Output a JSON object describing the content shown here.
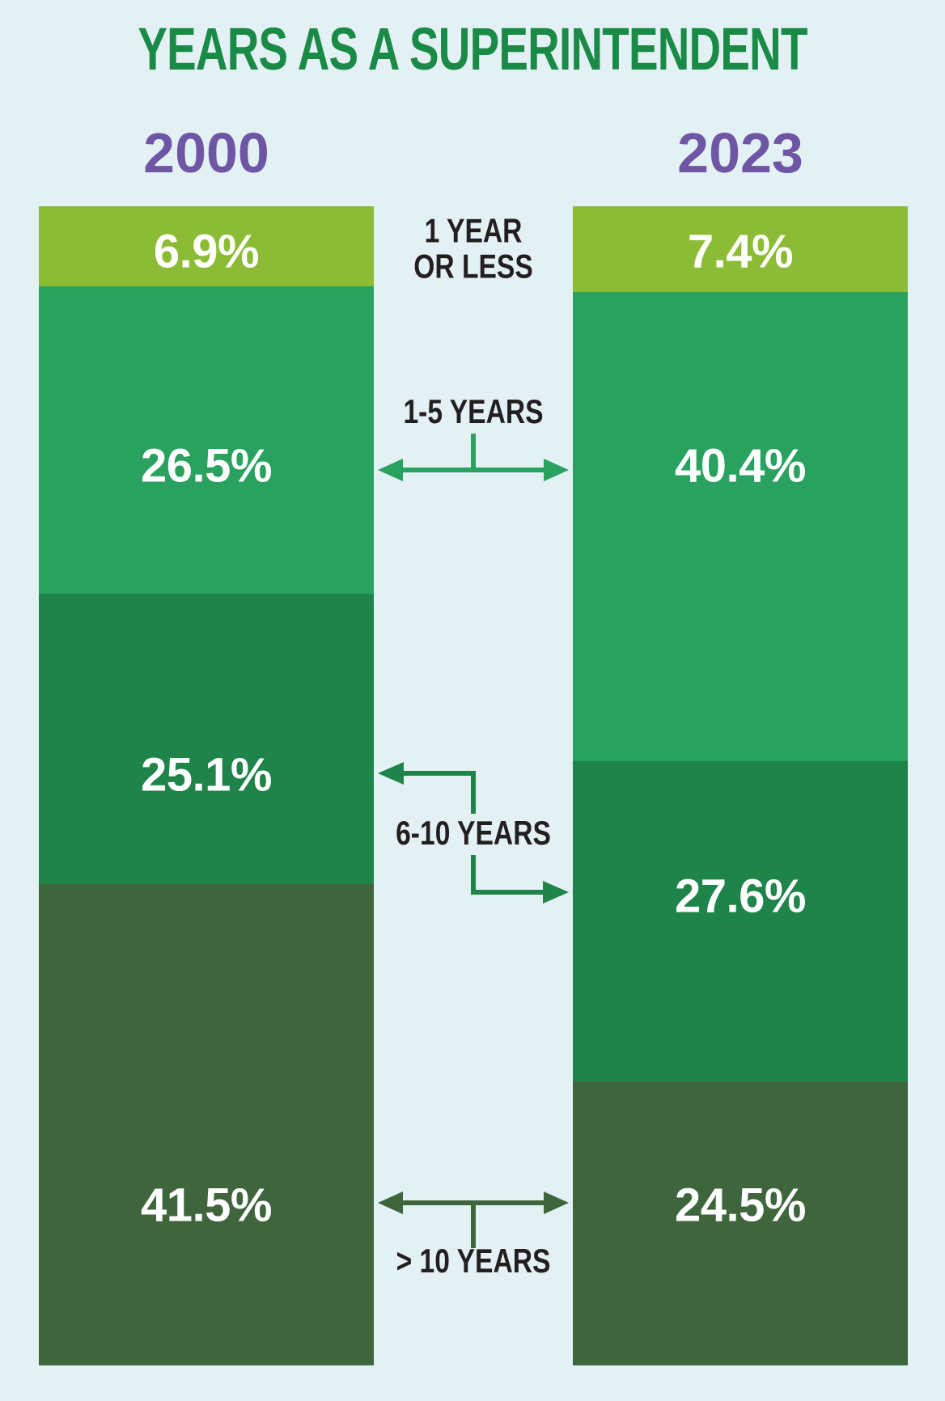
{
  "page": {
    "background_color": "#e3f1f5",
    "category_label_color": "#231f20"
  },
  "chart_data": {
    "type": "bar",
    "variant": "paired-stacked-percentage-columns",
    "title": "YEARS AS A SUPERINTENDENT",
    "title_color": "#1a8a47",
    "year_label_color": "#6e56a4",
    "value_label_color": "#ffffff",
    "grid": false,
    "legend_position": "none",
    "ylim": [
      0,
      100
    ],
    "categories": [
      {
        "label": "1 YEAR\nOR LESS",
        "color": "#8cbc35"
      },
      {
        "label": "1-5 YEARS",
        "color": "#28a25e"
      },
      {
        "label": "6-10 YEARS",
        "color": "#1f8449"
      },
      {
        "label": "> 10 YEARS",
        "color": "#3f653c"
      }
    ],
    "series": [
      {
        "name": "2000",
        "values": [
          6.9,
          26.5,
          25.1,
          41.5
        ],
        "labels": [
          "6.9%",
          "26.5%",
          "25.1%",
          "41.5%"
        ]
      },
      {
        "name": "2023",
        "values": [
          7.4,
          40.4,
          27.6,
          24.5
        ],
        "labels": [
          "7.4%",
          "40.4%",
          "27.6%",
          "24.5%"
        ]
      }
    ]
  }
}
